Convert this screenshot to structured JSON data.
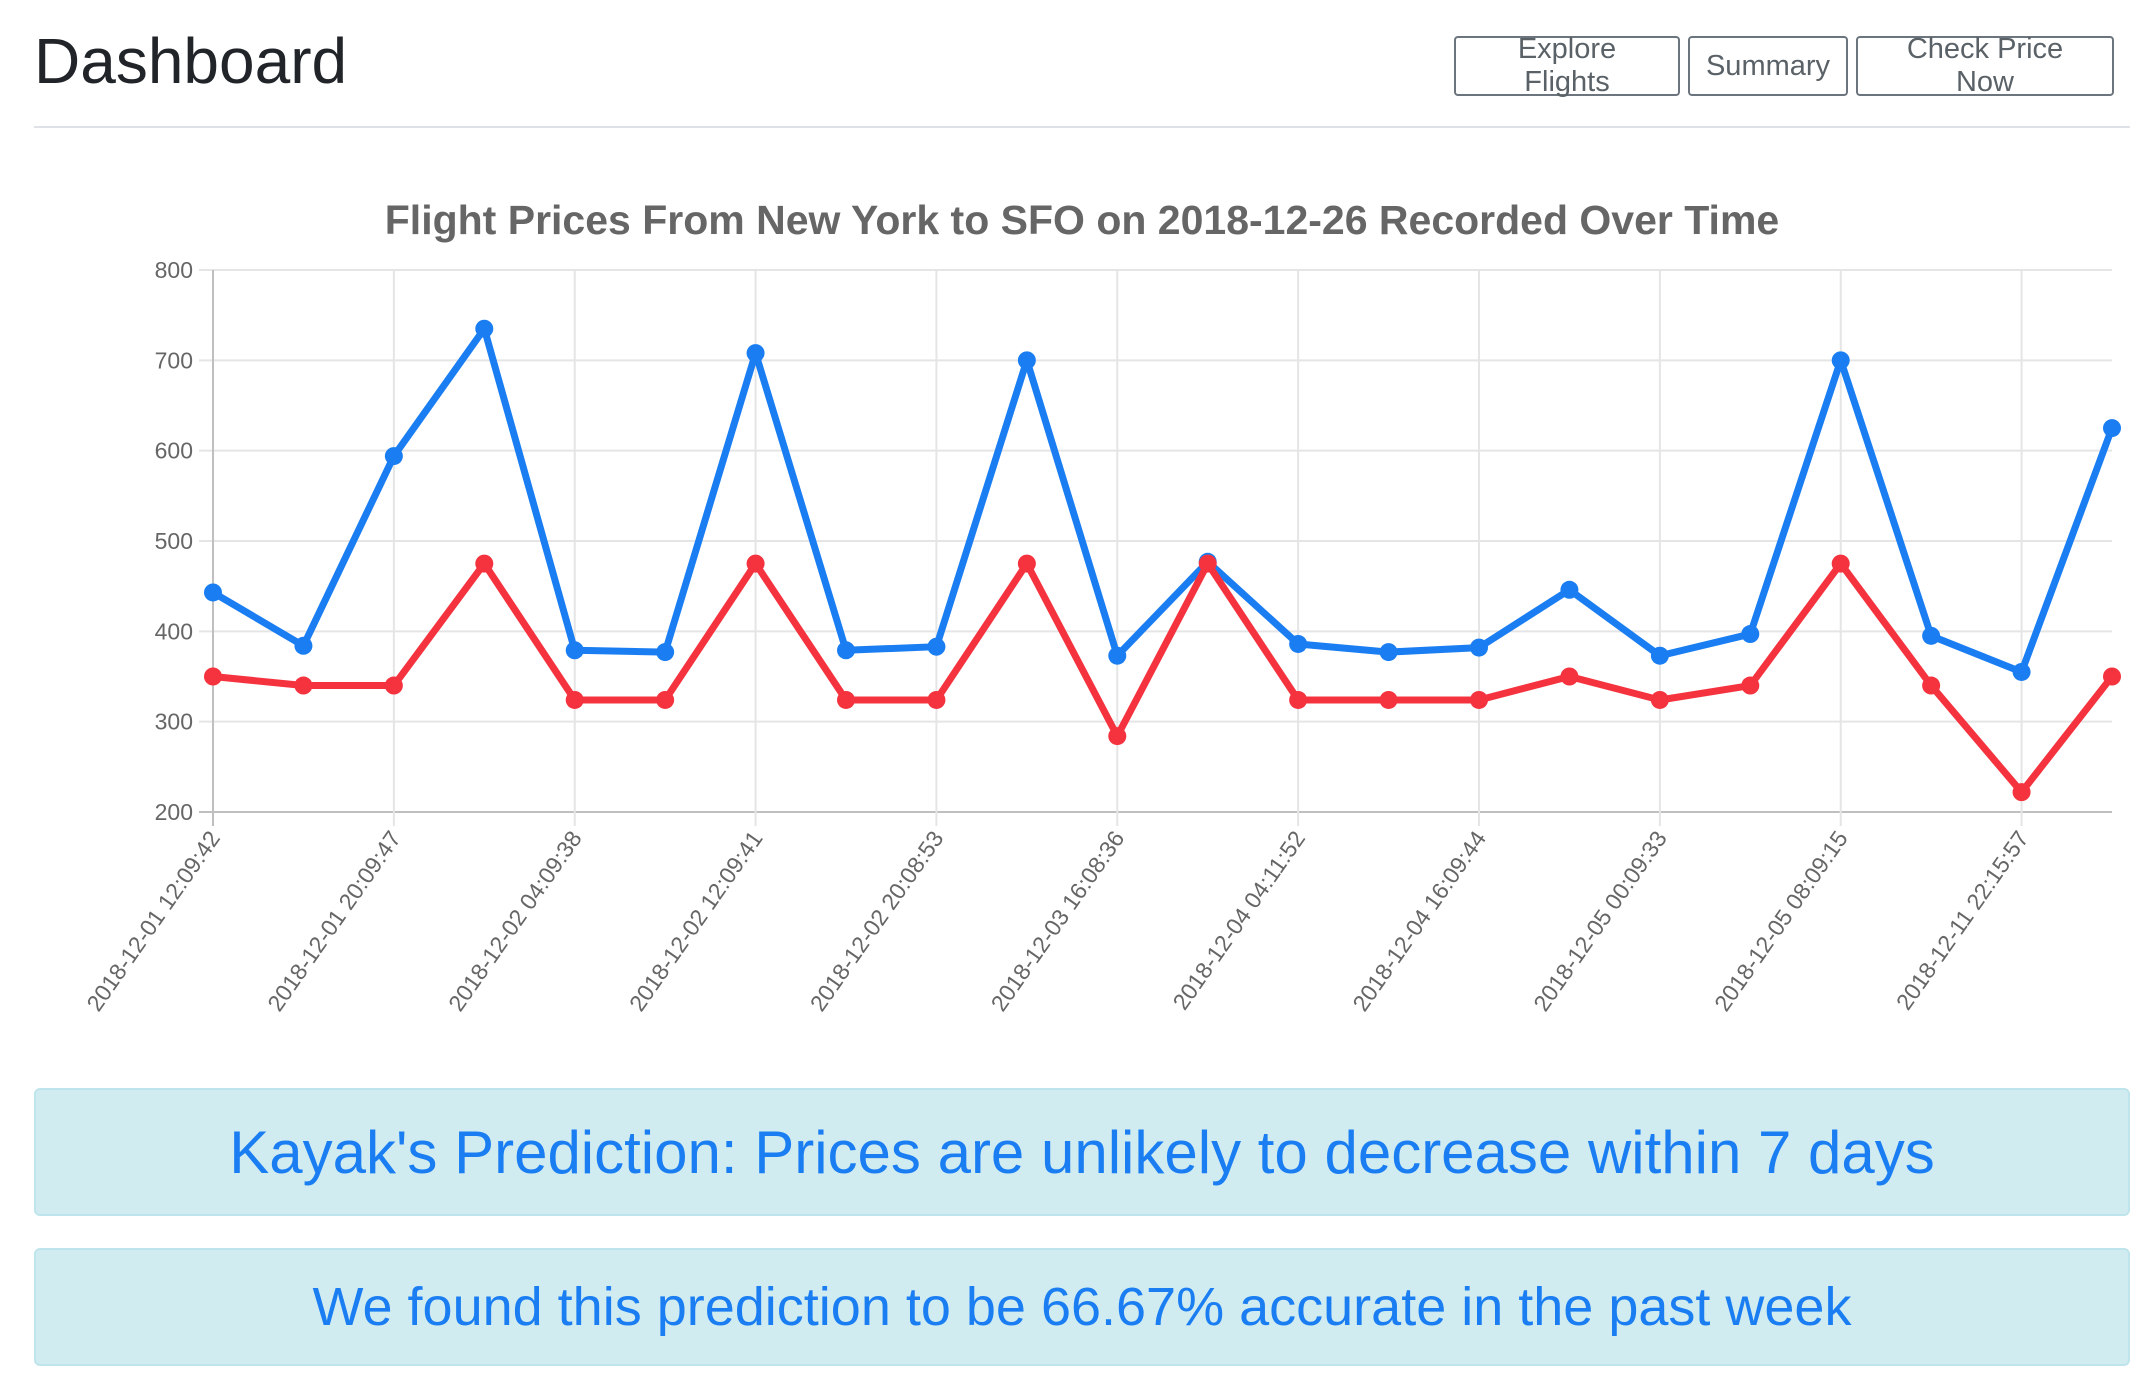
{
  "header": {
    "title": "Dashboard",
    "buttons": {
      "explore": "Explore Flights",
      "summary": "Summary",
      "check": "Check Price Now"
    }
  },
  "chart_data": {
    "type": "line",
    "title": "Flight Prices From New York to SFO on 2018-12-26 Recorded Over Time",
    "xlabel": "",
    "ylabel": "",
    "ylim": [
      200,
      800
    ],
    "yticks": [
      200,
      300,
      400,
      500,
      600,
      700,
      800
    ],
    "grid": true,
    "x_tick_labels": [
      "2018-12-01 12:09:42",
      "2018-12-01 20:09:47",
      "2018-12-02 04:09:38",
      "2018-12-02 12:09:41",
      "2018-12-02 20:08:53",
      "2018-12-03 16:08:36",
      "2018-12-04 04:11:52",
      "2018-12-04 16:09:44",
      "2018-12-05 00:09:33",
      "2018-12-05 08:09:15",
      "2018-12-11 22:15:57"
    ],
    "x_tick_every": 2,
    "point_count": 22,
    "series": [
      {
        "color": "#1a7ef2",
        "values": [
          443,
          384,
          594,
          735,
          379,
          377,
          708,
          379,
          383,
          700,
          373,
          477,
          386,
          377,
          382,
          446,
          373,
          397,
          700,
          395,
          355,
          625
        ]
      },
      {
        "color": "#f5333f",
        "values": [
          350,
          340,
          340,
          475,
          324,
          324,
          475,
          324,
          324,
          475,
          284,
          475,
          324,
          324,
          324,
          350,
          324,
          340,
          475,
          340,
          222,
          350
        ]
      }
    ]
  },
  "alerts": {
    "prediction": "Kayak's Prediction: Prices are unlikely to decrease within 7 days",
    "accuracy": "We found this prediction to be 66.67% accurate in the past week"
  }
}
